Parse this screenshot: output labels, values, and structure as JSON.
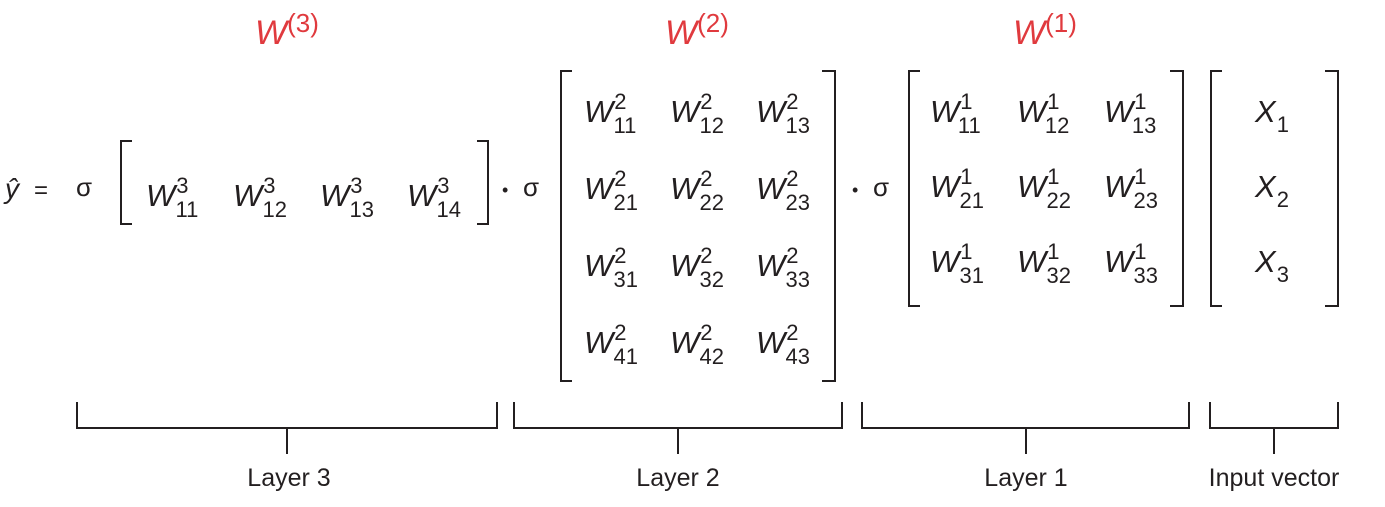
{
  "equation": {
    "lhs": "ŷ",
    "equals": "=",
    "sigma": "σ",
    "dot": "•"
  },
  "weight_titles": {
    "w3": {
      "base": "W",
      "sup": "(3)"
    },
    "w2": {
      "base": "W",
      "sup": "(2)"
    },
    "w1": {
      "base": "W",
      "sup": "(1)"
    }
  },
  "colors": {
    "text": "#231f20",
    "highlight": "#e03a3e"
  },
  "matrices": {
    "layer3": [
      [
        {
          "b": "W",
          "sup": "3",
          "sub": "11"
        },
        {
          "b": "W",
          "sup": "3",
          "sub": "12"
        },
        {
          "b": "W",
          "sup": "3",
          "sub": "13"
        },
        {
          "b": "W",
          "sup": "3",
          "sub": "14"
        }
      ]
    ],
    "layer2": [
      [
        {
          "b": "W",
          "sup": "2",
          "sub": "11"
        },
        {
          "b": "W",
          "sup": "2",
          "sub": "12"
        },
        {
          "b": "W",
          "sup": "2",
          "sub": "13"
        }
      ],
      [
        {
          "b": "W",
          "sup": "2",
          "sub": "21"
        },
        {
          "b": "W",
          "sup": "2",
          "sub": "22"
        },
        {
          "b": "W",
          "sup": "2",
          "sub": "23"
        }
      ],
      [
        {
          "b": "W",
          "sup": "2",
          "sub": "31"
        },
        {
          "b": "W",
          "sup": "2",
          "sub": "32"
        },
        {
          "b": "W",
          "sup": "2",
          "sub": "33"
        }
      ],
      [
        {
          "b": "W",
          "sup": "2",
          "sub": "41"
        },
        {
          "b": "W",
          "sup": "2",
          "sub": "42"
        },
        {
          "b": "W",
          "sup": "2",
          "sub": "43"
        }
      ]
    ],
    "layer1": [
      [
        {
          "b": "W",
          "sup": "1",
          "sub": "11"
        },
        {
          "b": "W",
          "sup": "1",
          "sub": "12"
        },
        {
          "b": "W",
          "sup": "1",
          "sub": "13"
        }
      ],
      [
        {
          "b": "W",
          "sup": "1",
          "sub": "21"
        },
        {
          "b": "W",
          "sup": "1",
          "sub": "22"
        },
        {
          "b": "W",
          "sup": "1",
          "sub": "23"
        }
      ],
      [
        {
          "b": "W",
          "sup": "1",
          "sub": "31"
        },
        {
          "b": "W",
          "sup": "1",
          "sub": "32"
        },
        {
          "b": "W",
          "sup": "1",
          "sub": "33"
        }
      ]
    ],
    "input": [
      [
        {
          "b": "X",
          "sup": "",
          "sub": "1"
        }
      ],
      [
        {
          "b": "X",
          "sup": "",
          "sub": "2"
        }
      ],
      [
        {
          "b": "X",
          "sup": "",
          "sub": "3"
        }
      ]
    ]
  },
  "group_labels": {
    "layer3": "Layer 3",
    "layer2": "Layer 2",
    "layer1": "Layer 1",
    "input": "Input vector"
  }
}
